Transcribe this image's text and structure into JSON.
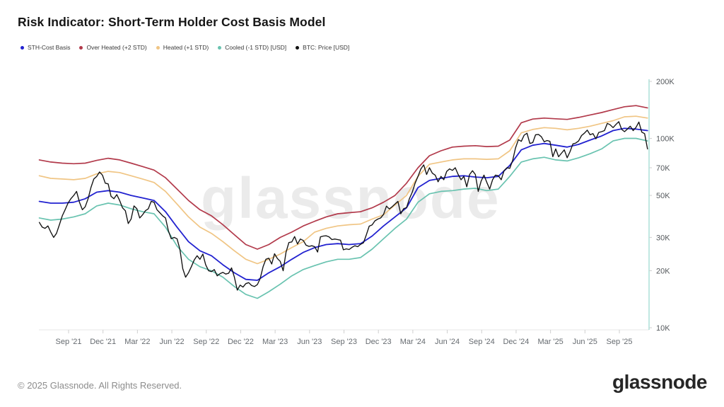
{
  "title": "Risk Indicator: Short-Term Holder Cost Basis Model",
  "legend": [
    {
      "name": "sth-cost-basis",
      "label": "STH-Cost Basis",
      "color": "#2222d0"
    },
    {
      "name": "over-heated-2std",
      "label": "Over Heated (+2 STD)",
      "color": "#b23a4b"
    },
    {
      "name": "heated-1std",
      "label": "Heated (+1 STD)",
      "color": "#f0c584"
    },
    {
      "name": "cooled-1std",
      "label": "Cooled (-1 STD) [USD]",
      "color": "#69c3b0"
    },
    {
      "name": "btc-price",
      "label": "BTC: Price [USD]",
      "color": "#111111"
    }
  ],
  "watermark": "glassnode",
  "footer": {
    "copyright": "© 2025 Glassnode. All Rights Reserved.",
    "brand": "glassnode"
  },
  "colors": {
    "axis_line_teal": "#9edbd2",
    "axis_baseline_gray": "#e7e7e7",
    "tick_gray": "#cfcfcf"
  },
  "chart_data": {
    "type": "line",
    "y_scale": "log",
    "y_unit": "USD (thousands)",
    "x_unit": "months since 2021-06-15",
    "grid": false,
    "legend_position": "top",
    "y_range_k": [
      10,
      200
    ],
    "x_range_months": [
      0,
      53
    ],
    "y_axis_ticks": [
      {
        "v": 200,
        "label": "200K"
      },
      {
        "v": 100,
        "label": "100K"
      },
      {
        "v": 70,
        "label": "70K"
      },
      {
        "v": 50,
        "label": "50K"
      },
      {
        "v": 30,
        "label": "30K"
      },
      {
        "v": 20,
        "label": "20K"
      },
      {
        "v": 10,
        "label": "10K"
      }
    ],
    "x_axis_ticks": [
      {
        "t": 2.55,
        "label": "Sep '21"
      },
      {
        "t": 5.55,
        "label": "Dec '21"
      },
      {
        "t": 8.55,
        "label": "Mar '22"
      },
      {
        "t": 11.55,
        "label": "Jun '22"
      },
      {
        "t": 14.55,
        "label": "Sep '22"
      },
      {
        "t": 17.55,
        "label": "Dec '22"
      },
      {
        "t": 20.55,
        "label": "Mar '23"
      },
      {
        "t": 23.55,
        "label": "Jun '23"
      },
      {
        "t": 26.55,
        "label": "Sep '23"
      },
      {
        "t": 29.55,
        "label": "Dec '23"
      },
      {
        "t": 32.55,
        "label": "Mar '24"
      },
      {
        "t": 35.55,
        "label": "Jun '24"
      },
      {
        "t": 38.55,
        "label": "Sep '24"
      },
      {
        "t": 41.55,
        "label": "Dec '24"
      },
      {
        "t": 44.55,
        "label": "Mar '25"
      },
      {
        "t": 47.55,
        "label": "Jun '25"
      },
      {
        "t": 50.55,
        "label": "Sep '25"
      }
    ],
    "series": [
      {
        "name": "Over Heated (+2 STD)",
        "color": "#b23a4b",
        "width": 1.7,
        "t_step": 1,
        "values_k": [
          77,
          75,
          74,
          73.5,
          74,
          76.5,
          78.5,
          77,
          74,
          71,
          68,
          62,
          54,
          47,
          42,
          39,
          35,
          31,
          27.5,
          26,
          27.5,
          30,
          32,
          34.5,
          36.5,
          38.5,
          40,
          40.5,
          41,
          43,
          46,
          50,
          58,
          70,
          81,
          86,
          90,
          91,
          91.5,
          90.5,
          91,
          98,
          121,
          126.5,
          128,
          127,
          126,
          129,
          133,
          137,
          142,
          147,
          149,
          145
        ]
      },
      {
        "name": "Heated (+1 STD)",
        "color": "#f0c584",
        "width": 1.7,
        "t_step": 1,
        "values_k": [
          63.5,
          61.5,
          61,
          60.5,
          61.5,
          65,
          67,
          66,
          63.5,
          61,
          58.5,
          52.5,
          45,
          38.5,
          34,
          31.5,
          28.5,
          25.5,
          23,
          21.8,
          23,
          24.5,
          26.5,
          28.5,
          32,
          33.5,
          34.5,
          35,
          35.3,
          37.5,
          39.5,
          44.5,
          50,
          63,
          73,
          75,
          77,
          78,
          78,
          77.5,
          78,
          86,
          107,
          111.5,
          114,
          113,
          111,
          113,
          116,
          120,
          124,
          130,
          131,
          128
        ]
      },
      {
        "name": "Cooled (-1 STD) [USD]",
        "color": "#69c3b0",
        "width": 1.7,
        "t_step": 1,
        "values_k": [
          38,
          37,
          37.5,
          38.5,
          40,
          44,
          45.5,
          44.5,
          42.5,
          41,
          40,
          34,
          27,
          23,
          21,
          20,
          18.5,
          16.5,
          15,
          14.3,
          15.5,
          17,
          18.8,
          20.3,
          21.3,
          22.3,
          23,
          23,
          23.5,
          26,
          29.5,
          33.5,
          37.5,
          46,
          51,
          52.5,
          53,
          54,
          54.5,
          53,
          54,
          63,
          75,
          78,
          79.5,
          77,
          76,
          79,
          83,
          88,
          97,
          100,
          100,
          97
        ]
      },
      {
        "name": "STH-Cost Basis",
        "color": "#2222d0",
        "width": 1.8,
        "t_step": 1,
        "values_k": [
          46.5,
          45.5,
          45.5,
          46,
          48,
          52,
          53,
          52,
          50,
          48.5,
          47,
          41,
          34,
          28.5,
          25.5,
          24,
          21.5,
          19.5,
          18,
          17.8,
          19.5,
          21,
          23,
          25,
          26.5,
          27.5,
          27.8,
          27.5,
          27.8,
          30.5,
          34.5,
          38.5,
          43,
          55,
          60,
          61.5,
          63,
          63.5,
          62.5,
          62,
          63,
          72,
          87,
          92,
          94,
          92,
          90,
          93,
          98,
          103,
          110,
          113,
          112,
          110
        ]
      },
      {
        "name": "BTC: Price [USD]",
        "color": "#111111",
        "width": 1.35,
        "t_step": 0.25,
        "values_k": [
          36,
          34,
          33.5,
          34.5,
          32,
          30,
          31.5,
          35,
          39,
          42,
          45.5,
          48,
          50,
          52.5,
          46,
          42,
          43.5,
          48,
          55,
          61,
          63,
          66.5,
          64,
          58,
          57.5,
          49.5,
          48,
          50.5,
          47,
          43,
          41.5,
          35.5,
          37.5,
          44,
          42.5,
          38,
          39.5,
          41.5,
          42.5,
          46.5,
          46,
          42,
          40.5,
          39,
          38,
          32.5,
          29.5,
          30,
          29.5,
          26,
          20.5,
          18.5,
          19.5,
          21,
          22.8,
          24,
          23,
          24.5,
          21.5,
          20,
          19.8,
          20.3,
          18.8,
          19.3,
          19.6,
          19.2,
          19.4,
          20.7,
          18.5,
          15.8,
          16.8,
          16.4,
          17.1,
          17.3,
          16.7,
          16.5,
          16.9,
          18.2,
          21,
          23,
          23.3,
          21.7,
          24.6,
          23.2,
          22.4,
          20,
          25,
          28.2,
          28.4,
          30.3,
          27.7,
          29.4,
          28.9,
          27.3,
          26.9,
          27.1,
          26.8,
          25.1,
          30.2,
          30.5,
          30.6,
          30.2,
          29.2,
          29.4,
          29.2,
          29,
          25.8,
          26.1,
          25.9,
          26.6,
          27.1,
          26.8,
          27.6,
          28.1,
          31,
          34.4,
          34.9,
          36.7,
          37.5,
          38,
          39.7,
          43.9,
          42.4,
          43.6,
          45,
          46.5,
          40,
          42.5,
          43.1,
          48,
          52,
          58,
          63,
          68.9,
          72.5,
          64.5,
          70,
          65.5,
          64,
          59,
          63,
          60.5,
          67,
          69,
          67.8,
          70,
          64.5,
          60.5,
          63,
          55.5,
          64.5,
          67.5,
          64.5,
          52.5,
          59.5,
          64,
          58.5,
          54,
          60.5,
          64,
          63.5,
          60.5,
          67.5,
          70,
          69.5,
          76.5,
          89,
          98.5,
          96.5,
          104,
          106.5,
          94,
          95,
          104.5,
          105,
          102,
          96,
          97.5,
          96.5,
          80,
          88,
          80,
          83.5,
          87,
          79,
          85,
          93.5,
          94.5,
          97,
          103.5,
          106.5,
          110.5,
          104.5,
          106,
          99.5,
          107.5,
          108.5,
          110,
          120,
          118,
          114,
          118.5,
          122.5,
          111.5,
          108.5,
          112,
          116,
          110,
          114.5,
          122,
          108,
          106,
          88
        ]
      }
    ]
  }
}
